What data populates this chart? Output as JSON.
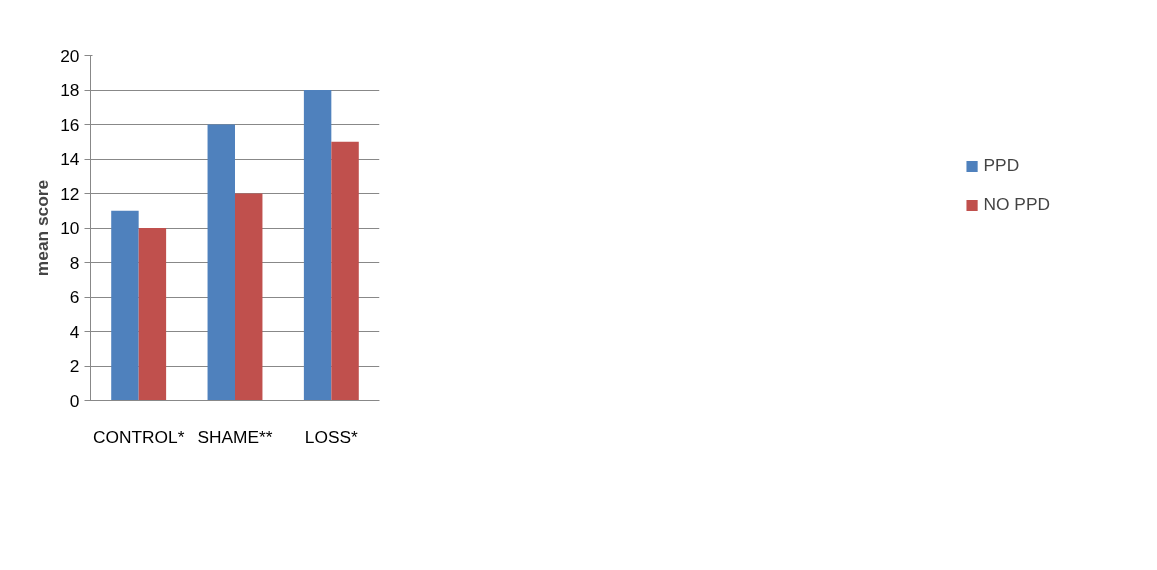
{
  "chart_data": {
    "type": "bar",
    "ylabel": "mean score",
    "categories": [
      "CONTROL*",
      "SHAME**",
      "LOSS*"
    ],
    "series": [
      {
        "name": "PPD",
        "color": "#4f81bd",
        "values": [
          11,
          16,
          18
        ]
      },
      {
        "name": "NO PPD",
        "color": "#c0504d",
        "values": [
          10,
          12,
          15
        ]
      }
    ],
    "ylim": [
      0,
      20
    ],
    "yticks": [
      0,
      2,
      4,
      6,
      8,
      10,
      12,
      14,
      16,
      18,
      20
    ],
    "grid": "y",
    "legend": "right"
  }
}
